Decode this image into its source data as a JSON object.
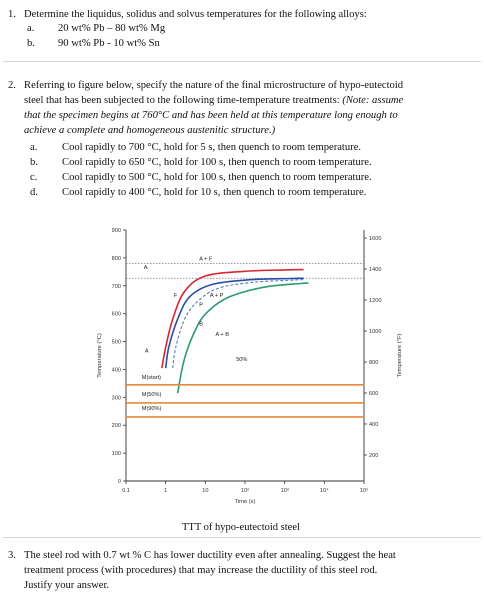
{
  "q1": {
    "number": "1.",
    "text": "Determine the liquidus, solidus and solvus temperatures for the following alloys:",
    "items": [
      {
        "letter": "a.",
        "text": "20 wt% Pb – 80 wt% Mg"
      },
      {
        "letter": "b.",
        "text": "90 wt% Pb - 10 wt% Sn"
      }
    ]
  },
  "q2": {
    "number": "2.",
    "lines": [
      "Referring to figure below, specify the nature of the final microstructure of hypo-eutectoid",
      "steel that has been subjected to the following time-temperature treatments:"
    ],
    "note_tail": "(Note: assume",
    "note_lines": [
      "that the specimen begins at 760°C and has been held at this temperature long enough to",
      "achieve a complete and homogeneous austenitic structure.)"
    ],
    "items": [
      {
        "letter": "a.",
        "text": "Cool rapidly to 700 °C, hold for 5 s, then quench to room temperature."
      },
      {
        "letter": "b.",
        "text": "Cool rapidly to 650 °C, hold for 100 s, then quench to room temperature."
      },
      {
        "letter": "c.",
        "text": "Cool rapidly to 500 °C, hold for 100 s, then quench to room temperature."
      },
      {
        "letter": "d.",
        "text": "Cool rapidly to 400 °C, hold for 10 s, then quench to room temperature."
      }
    ]
  },
  "figure": {
    "caption": "TTT of hypo-eutectoid steel",
    "chart_data": {
      "type": "line",
      "xscale": "log",
      "xlabel": "Time (s)",
      "ylabel_left": "Temperature (°C)",
      "ylabel_right": "Temperature (°F)",
      "ylim": [
        0,
        900
      ],
      "xlim": [
        0.1,
        100000
      ],
      "x_ticks": [
        "0.1",
        "1",
        "10",
        "10²",
        "10³",
        "10⁴",
        "10⁵"
      ],
      "y_ticks_left": [
        "0",
        "100",
        "200",
        "300",
        "400",
        "500",
        "600",
        "700",
        "800",
        "900"
      ],
      "y_ticks_right": [
        "200",
        "400",
        "600",
        "800",
        "1000",
        "1200",
        "1400",
        "1600"
      ],
      "grid": false,
      "reference_lines": [
        {
          "name": "upper critical",
          "y": 780,
          "style": "dotted"
        },
        {
          "name": "eutectoid",
          "y": 727,
          "style": "dotted"
        }
      ],
      "series": [
        {
          "name": "A → F start",
          "color": "#d9252f",
          "x": [
            0.8,
            1.0,
            1.5,
            3,
            10,
            100,
            1000,
            3000
          ],
          "y": [
            405,
            480,
            580,
            680,
            735,
            752,
            757,
            758
          ]
        },
        {
          "name": "pearlite start",
          "color": "#2a4ea6",
          "x": [
            1.0,
            1.2,
            2,
            4,
            15,
            150,
            1500,
            3000
          ],
          "y": [
            405,
            480,
            580,
            660,
            705,
            722,
            726,
            727
          ]
        },
        {
          "name": "50% line",
          "color": "#4f7cc0",
          "dashed": true,
          "x": [
            1.5,
            1.8,
            3,
            6,
            20,
            150,
            1500,
            3000
          ],
          "y": [
            405,
            480,
            580,
            640,
            690,
            712,
            720,
            722
          ]
        },
        {
          "name": "transformation end",
          "color": "#2b9b6b",
          "x": [
            2.0,
            3,
            6,
            12,
            40,
            300,
            2500,
            4000
          ],
          "y": [
            315,
            440,
            550,
            610,
            660,
            695,
            708,
            710
          ]
        },
        {
          "name": "M(start)",
          "color": "#e8893a",
          "x": [
            0.1,
            100000
          ],
          "y": [
            345,
            345
          ]
        },
        {
          "name": "M(50%)",
          "color": "#e8893a",
          "x": [
            0.1,
            100000
          ],
          "y": [
            280,
            280
          ]
        },
        {
          "name": "M(90%)",
          "color": "#e8893a",
          "x": [
            0.1,
            100000
          ],
          "y": [
            230,
            230
          ]
        }
      ],
      "annotations": [
        {
          "text": "A",
          "x": 0.28,
          "y": 760
        },
        {
          "text": "A + F",
          "x": 7,
          "y": 790
        },
        {
          "text": "F",
          "x": 1.6,
          "y": 660
        },
        {
          "text": "A + P",
          "x": 13,
          "y": 660
        },
        {
          "text": "P",
          "x": 7,
          "y": 625
        },
        {
          "text": "B",
          "x": 7,
          "y": 558
        },
        {
          "text": "A + B",
          "x": 18,
          "y": 520
        },
        {
          "text": "50%",
          "x": 60,
          "y": 430
        },
        {
          "text": "A",
          "x": 0.3,
          "y": 460
        },
        {
          "text": "M(start)",
          "x": 0.25,
          "y": 365
        },
        {
          "text": "M(50%)",
          "x": 0.25,
          "y": 305
        },
        {
          "text": "M(90%)",
          "x": 0.25,
          "y": 255
        }
      ]
    }
  },
  "q3": {
    "number": "3.",
    "lines": [
      "The steel rod with 0.7 wt % C has lower ductility even after annealing. Suggest the heat",
      "treatment process (with procedures) that may increase the ductility of this steel rod.",
      "Justify your answer."
    ]
  }
}
